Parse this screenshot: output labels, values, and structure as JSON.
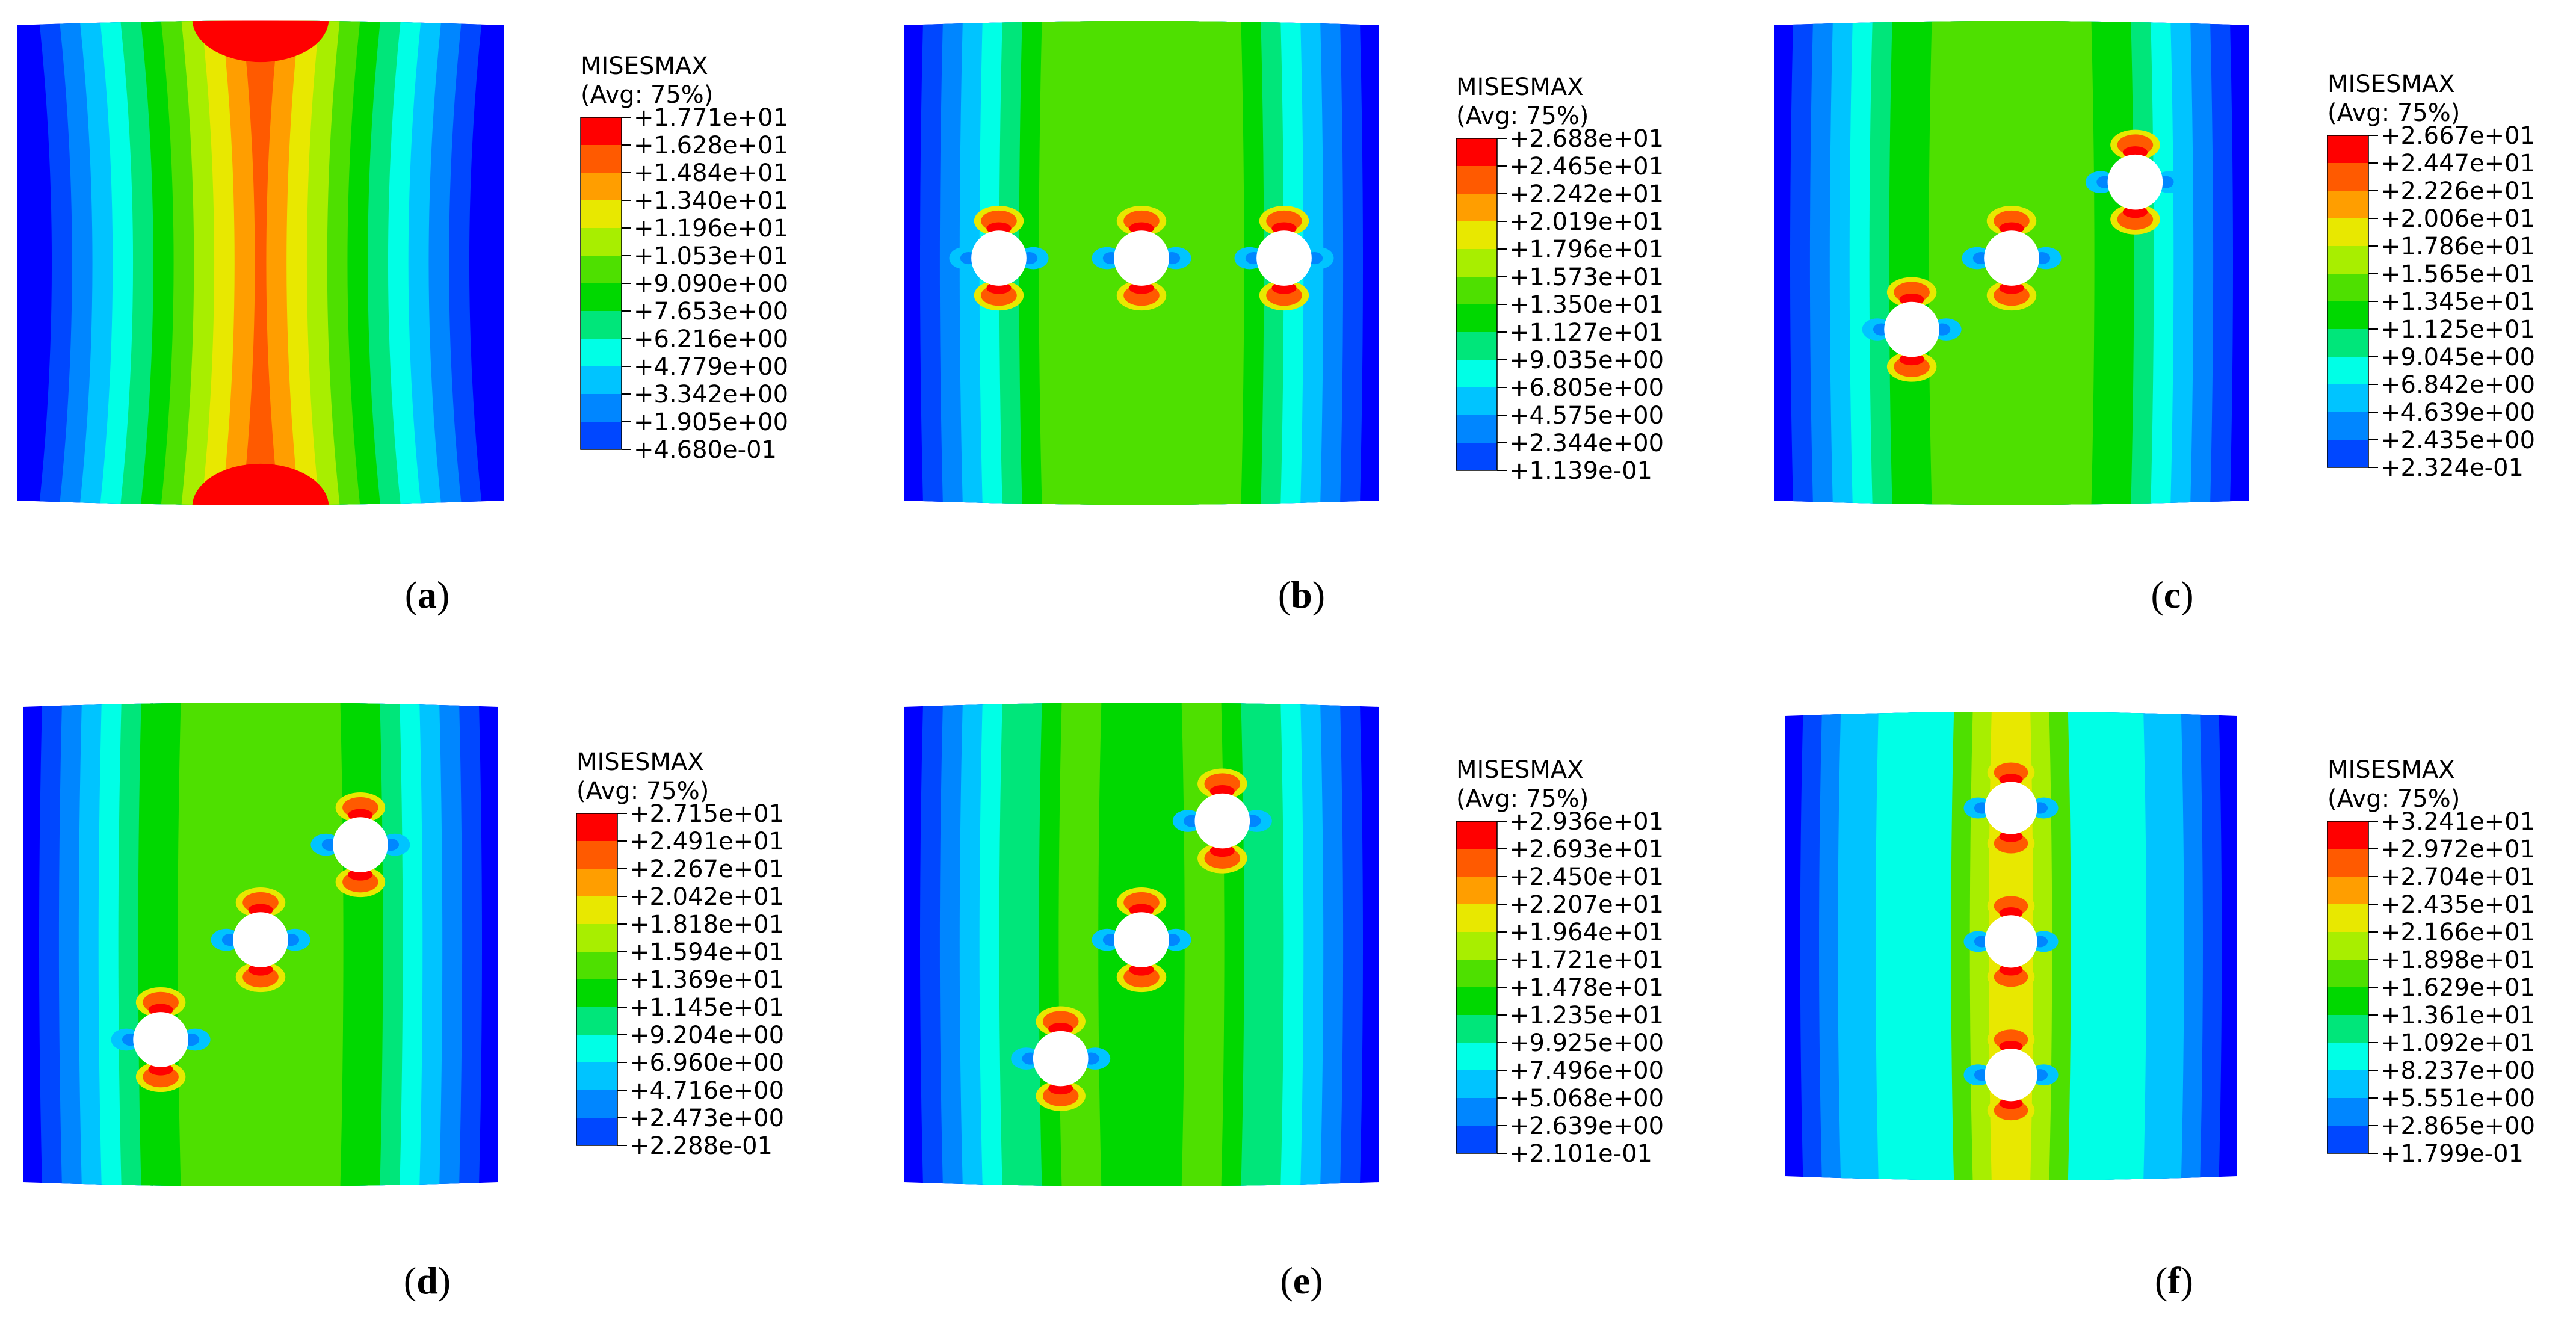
{
  "figure": {
    "legend_title": "MISESMAX",
    "legend_subtitle": "(Avg: 75%)",
    "colors": [
      "#ff0000",
      "#ff5a00",
      "#ff9e00",
      "#e8e800",
      "#a8ee00",
      "#4ee000",
      "#00d800",
      "#00e67a",
      "#00ffe6",
      "#00c4ff",
      "#0086ff",
      "#0047ff",
      "#0000ff"
    ],
    "panels": [
      {
        "id": "a",
        "label": "a",
        "holes": "none",
        "levels": [
          "+1.771e+01",
          "+1.628e+01",
          "+1.484e+01",
          "+1.340e+01",
          "+1.196e+01",
          "+1.053e+01",
          "+9.090e+00",
          "+7.653e+00",
          "+6.216e+00",
          "+4.779e+00",
          "+3.342e+00",
          "+1.905e+00",
          "+4.680e-01"
        ]
      },
      {
        "id": "b",
        "label": "b",
        "holes": "three holes in a horizontal row",
        "levels": [
          "+2.688e+01",
          "+2.465e+01",
          "+2.242e+01",
          "+2.019e+01",
          "+1.796e+01",
          "+1.573e+01",
          "+1.350e+01",
          "+1.127e+01",
          "+9.035e+00",
          "+6.805e+00",
          "+4.575e+00",
          "+2.344e+00",
          "+1.139e-01"
        ]
      },
      {
        "id": "c",
        "label": "c",
        "holes": "three holes on a shallow diagonal",
        "levels": [
          "+2.667e+01",
          "+2.447e+01",
          "+2.226e+01",
          "+2.006e+01",
          "+1.786e+01",
          "+1.565e+01",
          "+1.345e+01",
          "+1.125e+01",
          "+9.045e+00",
          "+6.842e+00",
          "+4.639e+00",
          "+2.435e+00",
          "+2.324e-01"
        ]
      },
      {
        "id": "d",
        "label": "d",
        "holes": "three holes on a diagonal",
        "levels": [
          "+2.715e+01",
          "+2.491e+01",
          "+2.267e+01",
          "+2.042e+01",
          "+1.818e+01",
          "+1.594e+01",
          "+1.369e+01",
          "+1.145e+01",
          "+9.204e+00",
          "+6.960e+00",
          "+4.716e+00",
          "+2.473e+00",
          "+2.288e-01"
        ]
      },
      {
        "id": "e",
        "label": "e",
        "holes": "three holes on a steep diagonal",
        "levels": [
          "+2.936e+01",
          "+2.693e+01",
          "+2.450e+01",
          "+2.207e+01",
          "+1.964e+01",
          "+1.721e+01",
          "+1.478e+01",
          "+1.235e+01",
          "+9.925e+00",
          "+7.496e+00",
          "+5.068e+00",
          "+2.639e+00",
          "+2.101e-01"
        ]
      },
      {
        "id": "f",
        "label": "f",
        "holes": "three holes in a vertical column",
        "levels": [
          "+3.241e+01",
          "+2.972e+01",
          "+2.704e+01",
          "+2.435e+01",
          "+2.166e+01",
          "+1.898e+01",
          "+1.629e+01",
          "+1.361e+01",
          "+1.092e+01",
          "+8.237e+00",
          "+5.551e+00",
          "+2.865e+00",
          "+1.799e-01"
        ]
      }
    ]
  }
}
